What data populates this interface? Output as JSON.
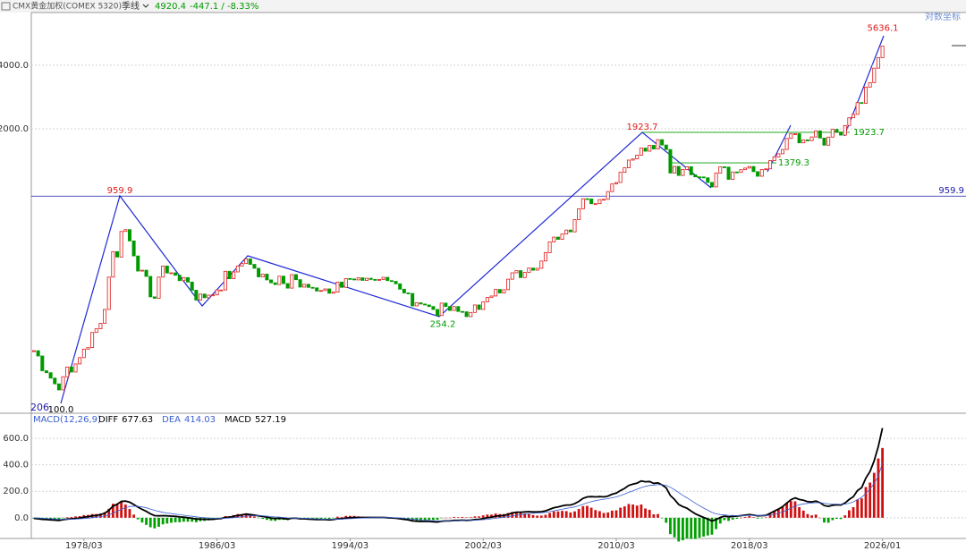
{
  "chart_data": [
    {
      "type": "candlestick",
      "title": "CMX黄金加权(COMEX 5320)",
      "period": "季线",
      "change_label": "-447.1 / -8.33%",
      "scale_label": "对数坐标",
      "corner_label": "206",
      "log_scale": true,
      "ylim": [
        90,
        7100
      ],
      "yticks": [
        {
          "value": 2000,
          "label": "2000.0"
        },
        {
          "value": 4000,
          "label": "4000.0"
        }
      ],
      "grid": true,
      "up_color": "#e01818",
      "down_color": "#009a00",
      "values": [
        178,
        168,
        143,
        140,
        132,
        124,
        116,
        134,
        149,
        141,
        154,
        165,
        181,
        184,
        217,
        226,
        240,
        279,
        397,
        524,
        494,
        653,
        666,
        589,
        500,
        424,
        428,
        400,
        320,
        315,
        397,
        448,
        415,
        416,
        405,
        382,
        395,
        376,
        344,
        309,
        330,
        317,
        326,
        327,
        345,
        345,
        423,
        390,
        420,
        448,
        460,
        484,
        456,
        437,
        398,
        410,
        385,
        373,
        366,
        401,
        370,
        352,
        408,
        386,
        356,
        367,
        355,
        353,
        341,
        343,
        349,
        333,
        337,
        376,
        355,
        391,
        389,
        385,
        394,
        383,
        392,
        387,
        384,
        387,
        396,
        382,
        379,
        369,
        348,
        334,
        332,
        290,
        300,
        296,
        293,
        288,
        279,
        261,
        299,
        288,
        276,
        288,
        273,
        272,
        258,
        270,
        293,
        279,
        303,
        318,
        323,
        347,
        334,
        346,
        388,
        416,
        426,
        395,
        418,
        438,
        428,
        437,
        473,
        518,
        583,
        614,
        599,
        635,
        663,
        650,
        743,
        836,
        933,
        930,
        884,
        884,
        924,
        927,
        1008,
        1096,
        1113,
        1244,
        1307,
        1421,
        1439,
        1500,
        1620,
        1566,
        1669,
        1604,
        1776,
        1675,
        1595,
        1234,
        1327,
        1202,
        1284,
        1322,
        1211,
        1184,
        1183,
        1172,
        1114,
        1061,
        1234,
        1321,
        1317,
        1152,
        1249,
        1242,
        1280,
        1303,
        1325,
        1253,
        1192,
        1282,
        1292,
        1413,
        1472,
        1523,
        1596,
        1800,
        1892,
        1895,
        1715,
        1771,
        1757,
        1829,
        1954,
        1807,
        1672,
        1826,
        1987,
        1929,
        1866,
        2072,
        2254,
        2339,
        2660,
        2641,
        3150,
        3307,
        3873,
        4341,
        4920.4
      ],
      "annotations": [
        {
          "value": 5636.1,
          "label": "5636.1",
          "color": "#e01818"
        },
        {
          "value": 1923.7,
          "label": "1923.7",
          "color": "#e01818"
        },
        {
          "value": 959.9,
          "label": "959.9",
          "color": "#e01818"
        },
        {
          "value": 254.2,
          "label": "254.2",
          "color": "#009a00"
        },
        {
          "value": 100,
          "label": "100.0",
          "color": "#000000"
        },
        {
          "value": 1923.7,
          "label": "1923.7",
          "color": "#009a00"
        },
        {
          "value": 1379.3,
          "label": "1379.3",
          "color": "#009a00"
        },
        {
          "value": 959.9,
          "label": "959.9",
          "color": "#1a1aa8"
        }
      ]
    },
    {
      "type": "macd",
      "title": "MACD(12,26,9)",
      "ylim": [
        -150,
        790
      ],
      "yticks": [
        {
          "value": 0,
          "label": "0.0"
        },
        {
          "value": 200,
          "label": "200.0"
        },
        {
          "value": 400,
          "label": "400.0"
        },
        {
          "value": 600,
          "label": "600.0"
        }
      ],
      "grid": true,
      "categories": [
        null,
        null,
        null,
        null,
        null,
        null,
        null,
        null,
        null,
        null,
        null,
        null,
        "1978/03",
        null,
        null,
        null,
        null,
        null,
        null,
        null,
        null,
        null,
        null,
        null,
        null,
        null,
        null,
        null,
        null,
        null,
        null,
        null,
        null,
        null,
        null,
        null,
        null,
        null,
        null,
        null,
        null,
        null,
        null,
        null,
        "1986/03",
        null,
        null,
        null,
        null,
        null,
        null,
        null,
        null,
        null,
        null,
        null,
        null,
        null,
        null,
        null,
        null,
        null,
        null,
        null,
        null,
        null,
        null,
        null,
        null,
        null,
        null,
        null,
        null,
        null,
        null,
        null,
        "1994/03",
        null,
        null,
        null,
        null,
        null,
        null,
        null,
        null,
        null,
        null,
        null,
        null,
        null,
        null,
        null,
        null,
        null,
        null,
        null,
        null,
        null,
        null,
        null,
        null,
        null,
        null,
        null,
        null,
        null,
        null,
        null,
        "2002/03",
        null,
        null,
        null,
        null,
        null,
        null,
        null,
        null,
        null,
        null,
        null,
        null,
        null,
        null,
        null,
        null,
        null,
        null,
        null,
        null,
        null,
        null,
        null,
        null,
        null,
        null,
        null,
        null,
        null,
        null,
        null,
        "2010/03",
        null,
        null,
        null,
        null,
        null,
        null,
        null,
        null,
        null,
        null,
        null,
        null,
        null,
        null,
        null,
        null,
        null,
        null,
        null,
        null,
        null,
        null,
        null,
        null,
        null,
        null,
        null,
        null,
        null,
        null,
        null,
        "2018/03",
        null,
        null,
        null,
        null,
        null,
        null,
        null,
        null,
        null,
        null,
        null,
        null,
        null,
        null,
        null,
        null,
        null,
        null,
        null,
        null,
        null,
        null,
        null,
        null,
        null,
        null,
        null,
        null,
        null,
        null,
        null,
        "2026/01"
      ],
      "series": [
        {
          "name": "DIFF",
          "color": "#000000",
          "kind": "line",
          "values": [
            -5,
            -8,
            -12,
            -14,
            -16,
            -18,
            -20,
            -15,
            -10,
            -8,
            -5,
            -2,
            4,
            8,
            14,
            18,
            24,
            34,
            56,
            88,
            102,
            124,
            126,
            118,
            100,
            80,
            64,
            48,
            30,
            16,
            14,
            16,
            14,
            12,
            10,
            6,
            4,
            0,
            -4,
            -10,
            -10,
            -12,
            -12,
            -12,
            -8,
            -6,
            2,
            4,
            10,
            18,
            22,
            28,
            24,
            20,
            14,
            10,
            4,
            -2,
            -6,
            -4,
            -6,
            -10,
            -4,
            -4,
            -8,
            -8,
            -10,
            -12,
            -14,
            -14,
            -14,
            -16,
            -14,
            -8,
            -8,
            -2,
            0,
            2,
            2,
            2,
            2,
            2,
            2,
            2,
            2,
            0,
            -2,
            -4,
            -8,
            -12,
            -16,
            -24,
            -26,
            -28,
            -28,
            -28,
            -30,
            -32,
            -26,
            -24,
            -24,
            -20,
            -20,
            -18,
            -20,
            -18,
            -14,
            -12,
            -6,
            0,
            4,
            12,
            14,
            18,
            26,
            36,
            42,
            42,
            44,
            46,
            44,
            44,
            46,
            52,
            64,
            76,
            82,
            90,
            96,
            96,
            106,
            124,
            146,
            158,
            160,
            158,
            160,
            158,
            164,
            178,
            186,
            206,
            222,
            244,
            254,
            262,
            278,
            272,
            274,
            260,
            264,
            248,
            226,
            168,
            138,
            100,
            84,
            72,
            50,
            30,
            16,
            2,
            -10,
            -24,
            -14,
            2,
            12,
            6,
            10,
            12,
            16,
            20,
            24,
            20,
            14,
            16,
            18,
            34,
            50,
            66,
            84,
            112,
            136,
            150,
            138,
            132,
            122,
            120,
            126,
            114,
            92,
            86,
            94,
            98,
            96,
            112,
            138,
            160,
            206,
            228,
            300,
            350,
            430,
            540,
            677.63
          ]
        },
        {
          "name": "DEA",
          "color": "#3a5fd0",
          "kind": "line",
          "values": [
            -1,
            -2,
            -4,
            -6,
            -8,
            -10,
            -12,
            -13,
            -12,
            -11,
            -10,
            -8,
            -6,
            -3,
            0,
            4,
            8,
            13,
            22,
            35,
            49,
            64,
            76,
            85,
            88,
            86,
            82,
            75,
            66,
            56,
            48,
            41,
            36,
            31,
            27,
            23,
            19,
            15,
            11,
            7,
            3,
            0,
            -2,
            -4,
            -5,
            -5,
            -4,
            -2,
            0,
            4,
            8,
            12,
            14,
            15,
            15,
            14,
            12,
            9,
            6,
            4,
            2,
            -1,
            -2,
            -3,
            -4,
            -5,
            -6,
            -7,
            -9,
            -10,
            -11,
            -12,
            -13,
            -12,
            -11,
            -9,
            -7,
            -5,
            -3,
            -2,
            -1,
            0,
            0,
            1,
            1,
            1,
            0,
            -1,
            -2,
            -4,
            -7,
            -10,
            -13,
            -16,
            -18,
            -20,
            -22,
            -24,
            -24,
            -24,
            -24,
            -23,
            -22,
            -21,
            -21,
            -20,
            -19,
            -17,
            -15,
            -12,
            -8,
            -4,
            0,
            4,
            8,
            14,
            19,
            24,
            28,
            32,
            34,
            36,
            38,
            41,
            46,
            52,
            58,
            64,
            71,
            76,
            82,
            91,
            102,
            113,
            122,
            129,
            135,
            140,
            144,
            151,
            158,
            168,
            179,
            192,
            204,
            216,
            228,
            237,
            244,
            247,
            250,
            250,
            245,
            230,
            212,
            190,
            169,
            150,
            130,
            110,
            91,
            73,
            57,
            40,
            29,
            24,
            21,
            18,
            17,
            16,
            16,
            17,
            18,
            18,
            17,
            17,
            17,
            20,
            26,
            34,
            44,
            57,
            73,
            88,
            98,
            105,
            108,
            111,
            114,
            114,
            110,
            105,
            103,
            102,
            101,
            103,
            110,
            120,
            137,
            155,
            184,
            217,
            260,
            316,
            414.03
          ]
        },
        {
          "name": "MACD",
          "kind": "bar",
          "up_color": "#d01010",
          "down_color": "#00a000",
          "values": [
            -8,
            -12,
            -16,
            -16,
            -16,
            -16,
            -16,
            -4,
            4,
            6,
            10,
            12,
            20,
            22,
            28,
            28,
            32,
            42,
            68,
            106,
            106,
            120,
            100,
            66,
            24,
            -12,
            -36,
            -54,
            -72,
            -80,
            -68,
            -50,
            -44,
            -38,
            -34,
            -34,
            -30,
            -30,
            -30,
            -34,
            -26,
            -24,
            -20,
            -16,
            -6,
            -2,
            12,
            12,
            20,
            28,
            28,
            32,
            20,
            10,
            -2,
            -8,
            -16,
            -22,
            -24,
            -16,
            -16,
            -18,
            -4,
            -2,
            -8,
            -6,
            -8,
            -10,
            -10,
            -8,
            -6,
            -8,
            -2,
            8,
            6,
            14,
            14,
            14,
            10,
            8,
            6,
            4,
            4,
            2,
            2,
            -2,
            -4,
            -6,
            -12,
            -16,
            -18,
            -28,
            -26,
            -24,
            -20,
            -16,
            -16,
            -16,
            -4,
            0,
            0,
            6,
            4,
            6,
            2,
            4,
            10,
            10,
            18,
            24,
            24,
            32,
            28,
            28,
            36,
            44,
            46,
            36,
            32,
            28,
            20,
            16,
            16,
            22,
            36,
            48,
            48,
            52,
            50,
            40,
            48,
            66,
            88,
            90,
            76,
            58,
            50,
            36,
            40,
            54,
            56,
            76,
            86,
            104,
            100,
            92,
            100,
            70,
            60,
            26,
            28,
            -4,
            -38,
            -124,
            -148,
            -180,
            -170,
            -156,
            -160,
            -160,
            -150,
            -142,
            -134,
            -128,
            -86,
            -44,
            -18,
            -24,
            -14,
            -8,
            0,
            6,
            12,
            4,
            -6,
            -2,
            2,
            28,
            48,
            64,
            80,
            110,
            126,
            124,
            80,
            54,
            28,
            18,
            24,
            0,
            -36,
            -38,
            -18,
            -8,
            -10,
            18,
            56,
            80,
            138,
            146,
            232,
            266,
            340,
            448,
            527.19
          ]
        }
      ]
    }
  ]
}
